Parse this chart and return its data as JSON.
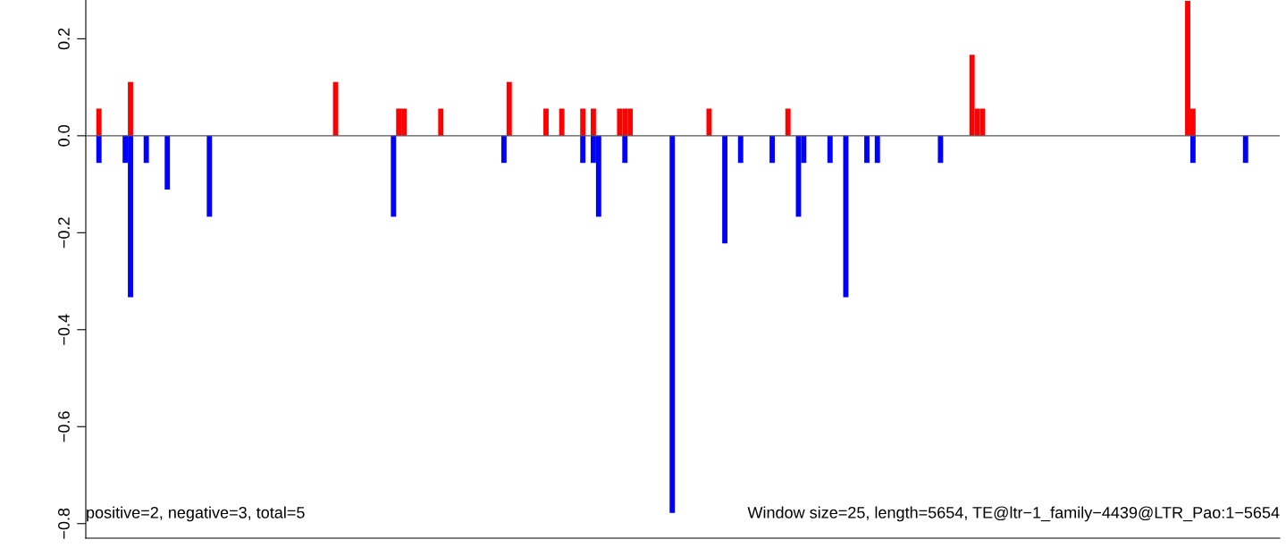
{
  "chart_data": {
    "type": "bar",
    "annotations": [
      "positive=2, negative=3, total=5",
      "Window size=25, length=5654, TE@ltr−1_family−4439@LTR_Pao:1−5654"
    ],
    "categories": [
      null,
      null,
      null,
      null,
      null,
      null,
      null,
      null,
      null,
      null,
      null,
      null,
      null,
      null,
      null,
      null,
      null,
      null,
      null,
      null,
      null,
      null,
      null,
      null,
      null,
      null,
      null,
      null,
      null,
      null,
      null,
      null,
      null,
      null,
      null,
      null,
      null,
      null,
      null,
      null,
      null,
      null,
      null,
      null,
      null,
      null,
      null,
      null,
      null,
      null,
      null,
      null,
      null,
      null,
      null,
      null,
      null,
      null,
      null,
      null,
      null,
      null,
      null,
      null,
      null,
      null,
      null,
      null,
      null,
      null,
      null,
      null,
      null,
      null,
      null,
      null,
      null,
      null,
      null,
      null,
      null,
      null,
      null,
      null,
      null,
      null,
      null,
      null,
      null,
      null,
      null,
      null,
      null,
      null,
      null,
      null,
      null,
      null,
      null,
      null,
      null,
      null,
      null,
      null,
      null,
      null,
      null,
      null,
      null,
      null,
      null,
      null,
      null,
      null,
      null,
      null,
      null,
      null,
      null,
      null,
      null,
      null,
      null,
      null,
      null,
      null,
      null,
      null,
      null,
      null,
      null,
      null,
      null,
      null,
      null,
      null,
      null,
      null,
      null,
      null,
      null,
      null,
      null,
      null,
      null,
      null,
      null,
      null,
      null,
      null,
      null,
      null,
      null,
      null,
      null,
      null,
      null,
      null,
      null,
      null,
      null,
      null,
      null,
      null,
      null,
      null,
      null,
      null,
      null,
      null,
      null,
      null,
      null,
      null,
      null,
      null,
      null,
      null,
      null,
      null,
      null,
      null,
      null,
      null,
      null,
      null,
      null,
      null,
      null,
      null,
      null,
      null,
      null,
      null,
      null,
      null,
      null,
      null,
      null,
      null,
      null,
      null,
      null,
      null,
      null,
      null,
      null,
      null,
      null,
      null,
      null,
      null,
      null,
      null,
      null,
      null,
      null,
      null,
      null,
      null,
      null,
      null,
      null,
      null,
      null,
      null,
      null
    ],
    "series": [
      {
        "color": "#ff0000",
        "values": [
          0,
          0,
          0.056,
          0,
          0,
          0,
          0,
          0,
          0.111,
          0,
          0,
          0,
          0,
          0,
          0,
          0,
          0,
          0,
          0,
          0,
          0,
          0,
          0,
          0,
          0,
          0,
          0,
          0,
          0,
          0,
          0,
          0,
          0,
          0,
          0,
          0,
          0,
          0,
          0,
          0,
          0,
          0,
          0,
          0,
          0,
          0,
          0,
          0.111,
          0,
          0,
          0,
          0,
          0,
          0,
          0,
          0,
          0,
          0,
          0,
          0.056,
          0.056,
          0,
          0,
          0,
          0,
          0,
          0,
          0.056,
          0,
          0,
          0,
          0,
          0,
          0,
          0,
          0,
          0,
          0,
          0,
          0,
          0.111,
          0,
          0,
          0,
          0,
          0,
          0,
          0.056,
          0,
          0,
          0.056,
          0,
          0,
          0,
          0.056,
          0,
          0.056,
          0,
          0,
          0,
          0,
          0.056,
          0.056,
          0.056,
          0,
          0,
          0,
          0,
          0,
          0,
          0,
          0,
          0,
          0,
          0,
          0,
          0,
          0,
          0.056,
          0,
          0,
          0,
          0,
          0,
          0,
          0,
          0,
          0,
          0,
          0,
          0,
          0,
          0,
          0.056,
          0,
          0,
          0,
          0,
          0,
          0,
          0,
          0,
          0,
          0,
          0,
          0,
          0,
          0,
          0,
          0,
          0,
          0,
          0,
          0,
          0,
          0,
          0,
          0,
          0,
          0,
          0,
          0,
          0,
          0,
          0,
          0,
          0,
          0,
          0.167,
          0.056,
          0.056,
          0,
          0,
          0,
          0,
          0,
          0,
          0,
          0,
          0,
          0,
          0,
          0,
          0,
          0,
          0,
          0,
          0,
          0,
          0,
          0,
          0,
          0,
          0,
          0,
          0,
          0,
          0,
          0,
          0,
          0,
          0,
          0,
          0,
          0,
          0,
          0,
          0,
          0,
          0.278,
          0.056,
          0,
          0,
          0,
          0,
          0,
          0,
          0,
          0,
          0,
          0,
          0,
          0,
          0,
          0,
          0,
          0
        ]
      },
      {
        "color": "#0000ff",
        "values": [
          0,
          0,
          -0.056,
          0,
          0,
          0,
          0,
          -0.056,
          -0.333,
          0,
          0,
          -0.056,
          0,
          0,
          0,
          -0.111,
          0,
          0,
          0,
          0,
          0,
          0,
          0,
          -0.167,
          0,
          0,
          0,
          0,
          0,
          0,
          0,
          0,
          0,
          0,
          0,
          0,
          0,
          0,
          0,
          0,
          0,
          0,
          0,
          0,
          0,
          0,
          0,
          0,
          0,
          0,
          0,
          0,
          0,
          0,
          0,
          0,
          0,
          0,
          -0.167,
          0,
          0,
          0,
          0,
          0,
          0,
          0,
          0,
          0,
          0,
          0,
          0,
          0,
          0,
          0,
          0,
          0,
          0,
          0,
          0,
          -0.056,
          0,
          0,
          0,
          0,
          0,
          0,
          0,
          0,
          0,
          0,
          0,
          0,
          0,
          0,
          -0.056,
          0,
          -0.056,
          -0.167,
          0,
          0,
          0,
          0,
          -0.056,
          0,
          0,
          0,
          0,
          0,
          0,
          0,
          0,
          -0.778,
          0,
          0,
          0,
          0,
          0,
          0,
          0,
          0,
          0,
          -0.222,
          0,
          0,
          -0.056,
          0,
          0,
          0,
          0,
          0,
          -0.056,
          0,
          0,
          0,
          0,
          -0.167,
          -0.056,
          0,
          0,
          0,
          0,
          -0.056,
          0,
          0,
          -0.333,
          0,
          0,
          0,
          -0.056,
          0,
          -0.056,
          0,
          0,
          0,
          0,
          0,
          0,
          0,
          0,
          0,
          0,
          0,
          -0.056,
          0,
          0,
          0,
          0,
          0,
          0,
          0,
          0,
          0,
          0,
          0,
          0,
          0,
          0,
          0,
          0,
          0,
          0,
          0,
          0,
          0,
          0,
          0,
          0,
          0,
          0,
          0,
          0,
          0,
          0,
          0,
          0,
          0,
          0,
          0,
          0,
          0,
          0,
          0,
          0,
          0,
          0,
          0,
          0,
          0,
          0,
          0,
          -0.056,
          0,
          0,
          0,
          0,
          0,
          0,
          0,
          0,
          0,
          -0.056,
          0,
          0,
          0,
          0,
          0,
          0
        ]
      }
    ],
    "ylim": [
      -0.83,
      0.28
    ],
    "yticks": [
      {
        "value": -0.8,
        "label": "−0.8"
      },
      {
        "value": -0.6,
        "label": "−0.6"
      },
      {
        "value": -0.4,
        "label": "−0.4"
      },
      {
        "value": -0.2,
        "label": "−0.2"
      },
      {
        "value": 0,
        "label": "0.0"
      },
      {
        "value": 0.2,
        "label": "0.2"
      }
    ],
    "tick_labels": "y",
    "ref_lines": [
      {
        "axis": "y",
        "value": 0,
        "color": "#555555",
        "line_style": "solid"
      }
    ],
    "grid": false
  }
}
